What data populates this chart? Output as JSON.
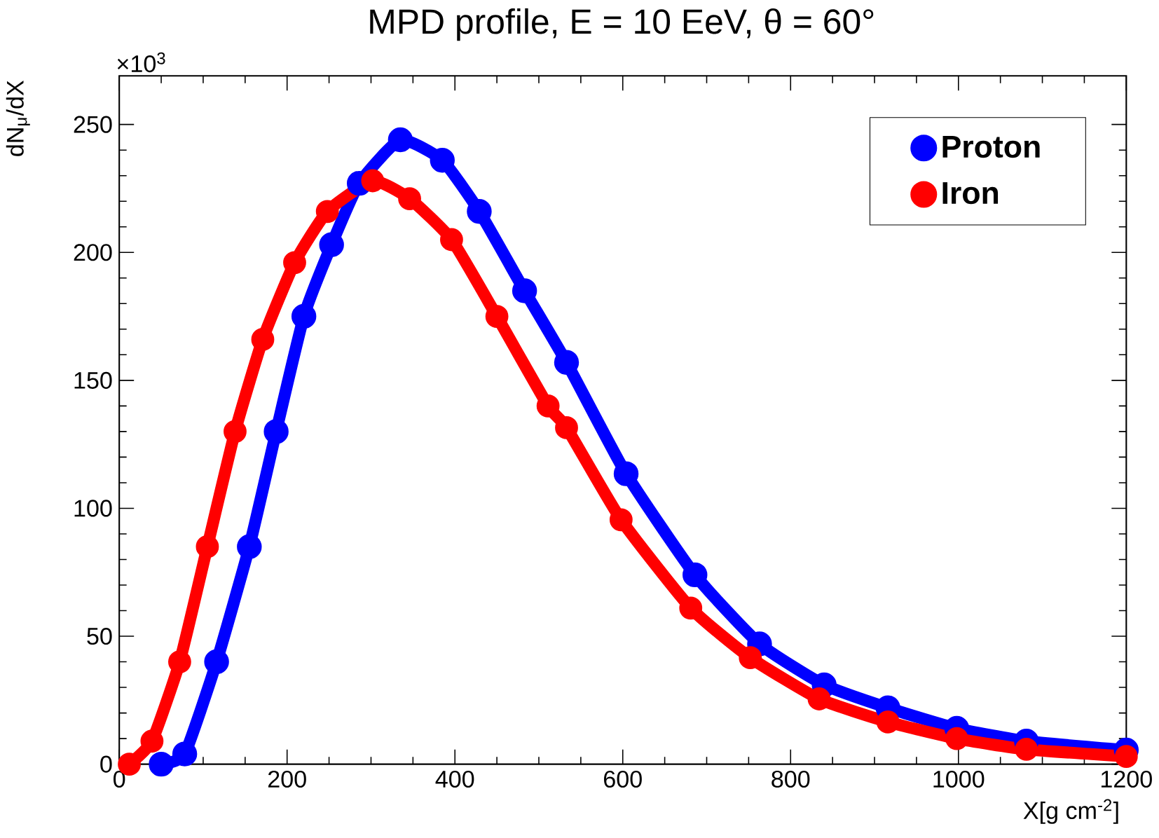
{
  "chart_data": {
    "type": "line",
    "title": "MPD profile, E = 10 EeV, θ = 60°",
    "xlabel": "X[g cm$^{-2}$]",
    "ylabel": "dN$_{μ}$/dX",
    "annotations": [
      "×10$^{3}$"
    ],
    "xlim": [
      0,
      1200
    ],
    "ylim": [
      0,
      269
    ],
    "xticks": [
      0,
      200,
      400,
      600,
      800,
      1000,
      1200
    ],
    "yticks": [
      0,
      50,
      100,
      150,
      200,
      250
    ],
    "legend": "top right",
    "marker": "circle",
    "line_style": "solid",
    "series": [
      {
        "name": "Proton",
        "color": "#0000ff",
        "x": [
          50,
          78,
          116,
          155,
          187,
          220,
          253,
          286,
          335,
          385,
          429,
          483,
          533,
          604,
          686,
          763,
          840,
          916,
          998,
          1081,
          1200
        ],
        "values": [
          0,
          4,
          40,
          85,
          130,
          175,
          203,
          227,
          244,
          236,
          216,
          185,
          157,
          113.5,
          74,
          47,
          31,
          22,
          14,
          9,
          5.5
        ]
      },
      {
        "name": "Iron",
        "color": "#ff0000",
        "x": [
          12,
          39,
          72,
          105,
          138,
          171,
          209,
          248,
          302,
          346,
          396,
          450,
          511,
          533,
          598,
          681,
          752,
          834,
          916,
          998,
          1081,
          1200
        ],
        "values": [
          0,
          9,
          40,
          85,
          130,
          166,
          196,
          216,
          228,
          221,
          205,
          175,
          140,
          131.5,
          95.5,
          61,
          41.6,
          25.5,
          16.5,
          10,
          5.8,
          3
        ]
      }
    ]
  }
}
